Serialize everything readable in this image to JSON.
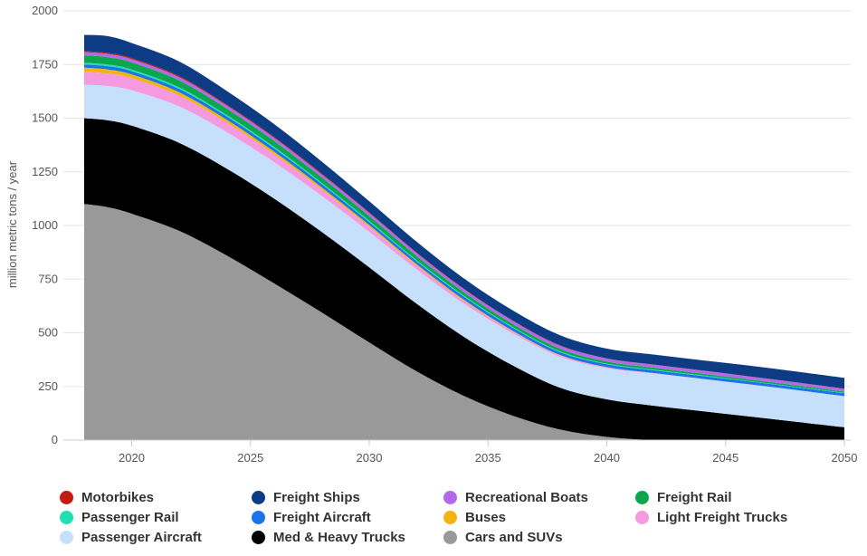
{
  "chart_data": {
    "type": "area",
    "stacked": true,
    "ylabel": "million metric tons / year",
    "ylim": [
      0,
      2000
    ],
    "xlim": [
      2018,
      2050
    ],
    "yticks": [
      "0",
      "250",
      "500",
      "750",
      "1000",
      "1250",
      "1500",
      "1750",
      "2000"
    ],
    "xticks": [
      "2020",
      "2025",
      "2030",
      "2035",
      "2040",
      "2045",
      "2050"
    ],
    "grid": true,
    "legend_position": "bottom",
    "x": [
      2018,
      2019,
      2020,
      2022,
      2024,
      2026,
      2028,
      2030,
      2032,
      2034,
      2036,
      2038,
      2040,
      2042,
      2044,
      2046,
      2048,
      2050
    ],
    "series": [
      {
        "name": "Cars and SUVs",
        "color": "#999999",
        "values": [
          1100,
          1085,
          1055,
          975,
          860,
          730,
          595,
          455,
          320,
          205,
          115,
          50,
          15,
          0,
          0,
          0,
          0,
          0
        ]
      },
      {
        "name": "Med & Heavy Trucks",
        "color": "#000000",
        "values": [
          400,
          405,
          410,
          410,
          405,
          395,
          375,
          350,
          315,
          275,
          235,
          195,
          175,
          160,
          135,
          110,
          85,
          60
        ]
      },
      {
        "name": "Passenger Aircraft",
        "color": "#c6e0fc",
        "values": [
          155,
          160,
          165,
          170,
          170,
          170,
          168,
          165,
          160,
          155,
          150,
          145,
          145,
          150,
          150,
          150,
          148,
          145
        ]
      },
      {
        "name": "Light Freight Trucks",
        "color": "#f59ae0",
        "values": [
          60,
          58,
          56,
          50,
          44,
          37,
          30,
          24,
          18,
          13,
          9,
          6,
          4,
          2,
          1,
          0,
          0,
          0
        ]
      },
      {
        "name": "Buses",
        "color": "#f0b414",
        "values": [
          20,
          19,
          18,
          16,
          14,
          12,
          10,
          8,
          6,
          5,
          3,
          2,
          1,
          0,
          0,
          0,
          0,
          0
        ]
      },
      {
        "name": "Freight Aircraft",
        "color": "#1a73e8",
        "values": [
          15,
          15,
          15,
          15,
          15,
          15,
          15,
          14,
          14,
          14,
          14,
          13,
          13,
          13,
          13,
          13,
          13,
          13
        ]
      },
      {
        "name": "Passenger Rail",
        "color": "#1fe0b0",
        "values": [
          8,
          8,
          8,
          8,
          7,
          7,
          6,
          6,
          5,
          5,
          4,
          4,
          3,
          3,
          3,
          2,
          2,
          2
        ]
      },
      {
        "name": "Freight Rail",
        "color": "#0ca64c",
        "values": [
          35,
          34,
          33,
          32,
          30,
          28,
          25,
          22,
          19,
          16,
          14,
          12,
          10,
          9,
          8,
          7,
          7,
          6
        ]
      },
      {
        "name": "Recreational Boats",
        "color": "#b36ae8",
        "values": [
          15,
          15,
          15,
          15,
          14,
          14,
          14,
          14,
          14,
          14,
          14,
          14,
          14,
          14,
          14,
          14,
          13,
          13
        ]
      },
      {
        "name": "Motorbikes",
        "color": "#c41a12",
        "values": [
          5,
          5,
          5,
          5,
          4,
          4,
          4,
          3,
          3,
          2,
          2,
          2,
          1,
          1,
          1,
          1,
          1,
          1
        ]
      },
      {
        "name": "Freight Ships",
        "color": "#0d3c85",
        "values": [
          75,
          78,
          70,
          68,
          64,
          60,
          56,
          52,
          50,
          48,
          47,
          47,
          45,
          46,
          47,
          50,
          50,
          50
        ]
      }
    ],
    "legend_order": [
      "Motorbikes",
      "Freight Ships",
      "Recreational Boats",
      "Freight Rail",
      "Passenger Rail",
      "Freight Aircraft",
      "Buses",
      "Light Freight Trucks",
      "Passenger Aircraft",
      "Med & Heavy Trucks",
      "Cars and SUVs"
    ]
  }
}
